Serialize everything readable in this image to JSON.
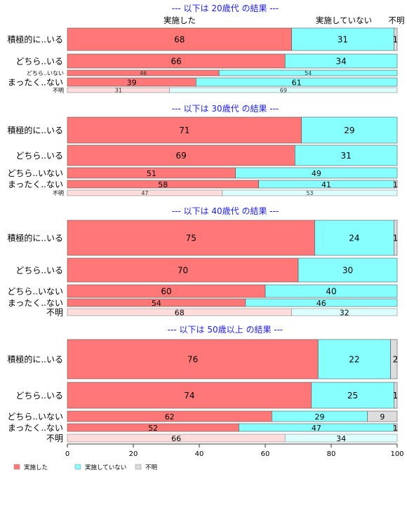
{
  "colors": {
    "impl": "#ff7777",
    "notimpl": "#88ffff",
    "unknown": "#dddddd",
    "impl_light": "#ffdddd",
    "notimpl_light": "#ddffff",
    "unknown_light": "#f2f2f2",
    "title": "#1a1aff"
  },
  "chart_data": {
    "type": "bar",
    "orientation": "horizontal-stacked",
    "x": {
      "lim": [
        0,
        100
      ],
      "ticks": [
        "0",
        "20",
        "40",
        "60",
        "80",
        "100"
      ]
    },
    "column_labels": {
      "impl": "実施した",
      "notimpl": "実施していない",
      "unknown": "不明"
    },
    "legend": {
      "position": "bottom-left",
      "items": [
        {
          "key": "impl",
          "label": "実施した"
        },
        {
          "key": "notimpl",
          "label": "実施していない"
        },
        {
          "key": "unknown",
          "label": "不明"
        }
      ]
    },
    "panels": [
      {
        "title": "--- 以下は 20歳代 の結果 ---",
        "rows": [
          {
            "label": "積極的に..いる",
            "values": [
              68,
              31,
              1
            ],
            "labels": [
              "68",
              "31",
              "1"
            ],
            "muted": false
          },
          {
            "label": "どちら..いる",
            "values": [
              66,
              34,
              0
            ],
            "labels": [
              "66",
              "34",
              ""
            ],
            "muted": false
          },
          {
            "label": "どちら..いない",
            "values": [
              46,
              54,
              0
            ],
            "labels": [
              "46",
              "54",
              ""
            ],
            "muted": false
          },
          {
            "label": "まったく..ない",
            "values": [
              39,
              61,
              0
            ],
            "labels": [
              "39",
              "61",
              ""
            ],
            "muted": false
          },
          {
            "label": "不明",
            "values": [
              31,
              69,
              0
            ],
            "labels": [
              "31",
              "69",
              ""
            ],
            "muted": true
          }
        ]
      },
      {
        "title": "--- 以下は 30歳代 の結果 ---",
        "rows": [
          {
            "label": "積極的に..いる",
            "values": [
              71,
              29,
              0
            ],
            "labels": [
              "71",
              "29",
              ""
            ],
            "muted": false
          },
          {
            "label": "どちら..いる",
            "values": [
              69,
              31,
              0
            ],
            "labels": [
              "69",
              "31",
              ""
            ],
            "muted": false
          },
          {
            "label": "どちら..いない",
            "values": [
              51,
              49,
              0
            ],
            "labels": [
              "51",
              "49",
              ""
            ],
            "muted": false
          },
          {
            "label": "まったく..ない",
            "values": [
              58,
              41,
              1
            ],
            "labels": [
              "58",
              "41",
              "1"
            ],
            "muted": false
          },
          {
            "label": "不明",
            "values": [
              47,
              53,
              0
            ],
            "labels": [
              "47",
              "53",
              ""
            ],
            "muted": true
          }
        ]
      },
      {
        "title": "--- 以下は 40歳代 の結果 ---",
        "rows": [
          {
            "label": "積極的に..いる",
            "values": [
              75,
              24,
              1
            ],
            "labels": [
              "75",
              "24",
              "1"
            ],
            "muted": false
          },
          {
            "label": "どちら..いる",
            "values": [
              70,
              30,
              0
            ],
            "labels": [
              "70",
              "30",
              ""
            ],
            "muted": false
          },
          {
            "label": "どちら..いない",
            "values": [
              60,
              40,
              0
            ],
            "labels": [
              "60",
              "40",
              ""
            ],
            "muted": false
          },
          {
            "label": "まったく..ない",
            "values": [
              54,
              46,
              0
            ],
            "labels": [
              "54",
              "46",
              ""
            ],
            "muted": false
          },
          {
            "label": "不明",
            "values": [
              68,
              32,
              0
            ],
            "labels": [
              "68",
              "32",
              ""
            ],
            "muted": true
          }
        ]
      },
      {
        "title": "--- 以下は 50歳以上 の結果 ---",
        "rows": [
          {
            "label": "積極的に..いる",
            "values": [
              76,
              22,
              2
            ],
            "labels": [
              "76",
              "22",
              "2"
            ],
            "muted": false
          },
          {
            "label": "どちら..いる",
            "values": [
              74,
              25,
              1
            ],
            "labels": [
              "74",
              "25",
              "1"
            ],
            "muted": false
          },
          {
            "label": "どちら..いない",
            "values": [
              62,
              29,
              9
            ],
            "labels": [
              "62",
              "29",
              "9"
            ],
            "muted": false
          },
          {
            "label": "まったく..ない",
            "values": [
              52,
              47,
              1
            ],
            "labels": [
              "52",
              "47",
              "1"
            ],
            "muted": false
          },
          {
            "label": "不明",
            "values": [
              66,
              34,
              0
            ],
            "labels": [
              "66",
              "34",
              ""
            ],
            "muted": true
          }
        ]
      }
    ]
  }
}
